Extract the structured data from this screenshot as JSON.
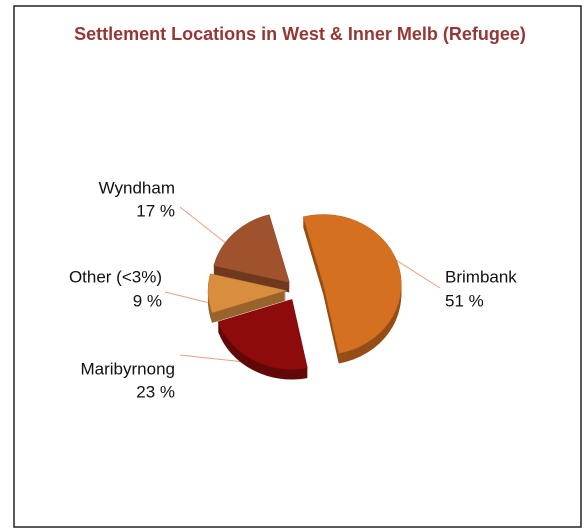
{
  "chart_data": {
    "type": "pie",
    "title": "Settlement Locations in West & Inner Melb (Refugee)",
    "categories": [
      "Brimbank",
      "Maribyrnong",
      "Other (<3%)",
      "Wyndham"
    ],
    "values": [
      51,
      23,
      9,
      17
    ],
    "value_labels": [
      "51 %",
      "23 %",
      "9 %",
      "17 %"
    ],
    "colors": [
      "#d4701f",
      "#8e0b0b",
      "#d98d3f",
      "#a0522d"
    ]
  }
}
